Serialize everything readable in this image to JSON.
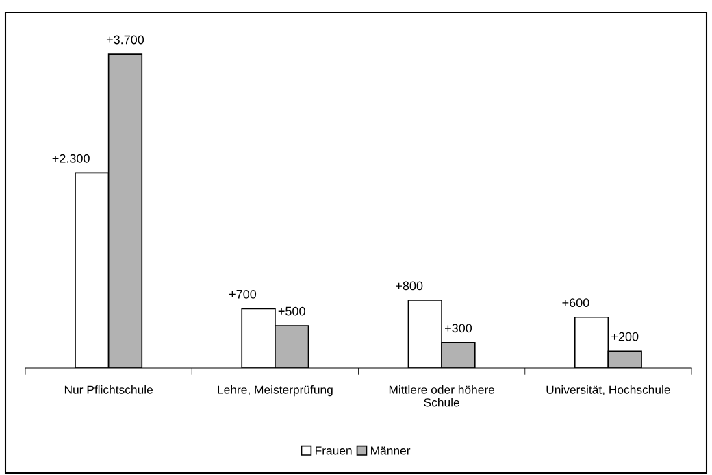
{
  "chart_data": {
    "type": "bar",
    "categories": [
      "Nur Pflichtschule",
      "Lehre, Meisterprüfung",
      "Mittlere oder höhere\nSchule",
      "Universität, Hochschule"
    ],
    "series": [
      {
        "name": "Frauen",
        "color": "#ffffff",
        "values": [
          2300,
          700,
          800,
          600
        ],
        "value_labels": [
          "+2.300",
          "+700",
          "+800",
          "+600"
        ]
      },
      {
        "name": "Männer",
        "color": "#b2b2b2",
        "values": [
          3700,
          500,
          300,
          200
        ],
        "value_labels": [
          "+3.700",
          "+500",
          "+300",
          "+200"
        ]
      }
    ],
    "legend": "bottom",
    "grid": false
  }
}
